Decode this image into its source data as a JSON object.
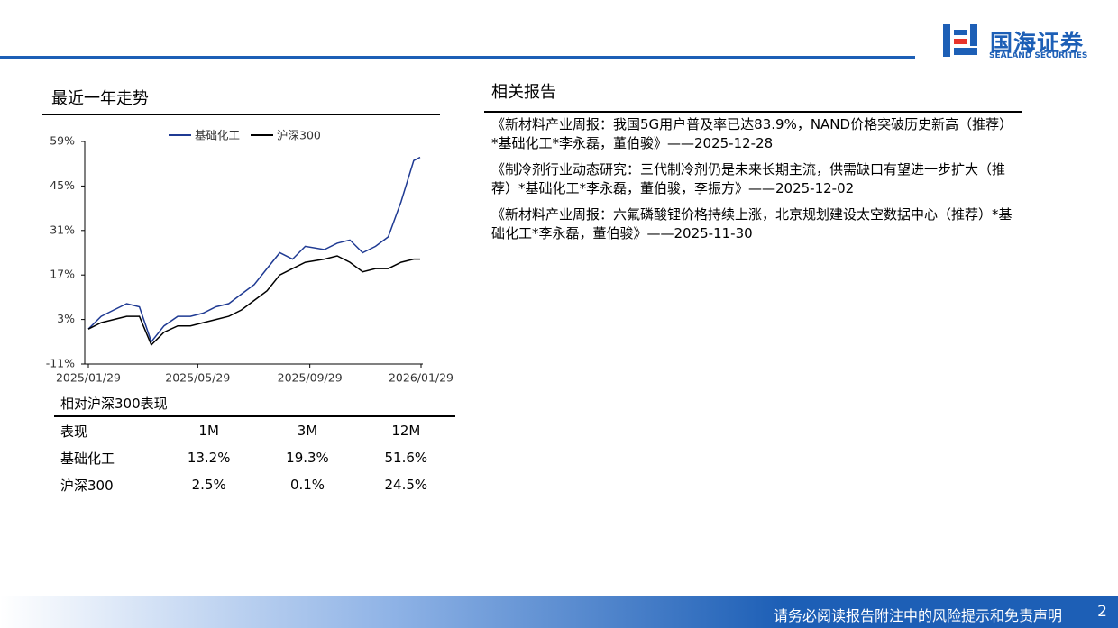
{
  "header": {
    "logo_cn": "国海证券",
    "logo_en": "SEALAND SECURITIES"
  },
  "chart_data": {
    "type": "line",
    "title": "最近一年走势",
    "x": [
      "2025/01/29",
      "2025/02/12",
      "2025/02/26",
      "2025/03/12",
      "2025/03/26",
      "2025/04/08",
      "2025/04/22",
      "2025/05/07",
      "2025/05/21",
      "2025/06/04",
      "2025/06/18",
      "2025/07/02",
      "2025/07/16",
      "2025/07/30",
      "2025/08/13",
      "2025/08/27",
      "2025/09/10",
      "2025/09/24",
      "2025/10/15",
      "2025/10/29",
      "2025/11/12",
      "2025/11/26",
      "2025/12/10",
      "2025/12/24",
      "2026/01/07",
      "2026/01/21",
      "2026/01/28"
    ],
    "series": [
      {
        "name": "基础化工",
        "color": "#1f3a93",
        "values": [
          0,
          4,
          6,
          8,
          7,
          -4,
          1,
          4,
          4,
          5,
          7,
          8,
          11,
          14,
          19,
          24,
          22,
          26,
          25,
          27,
          28,
          24,
          26,
          29,
          40,
          53,
          54
        ]
      },
      {
        "name": "沪深300",
        "color": "#000000",
        "values": [
          0,
          2,
          3,
          4,
          4,
          -5,
          -1,
          1,
          1,
          2,
          3,
          4,
          6,
          9,
          12,
          17,
          19,
          21,
          22,
          23,
          21,
          18,
          19,
          19,
          21,
          22,
          22
        ]
      }
    ],
    "xlim": [
      "2025/01/29",
      "2026/01/29"
    ],
    "xticks": [
      "2025/01/29",
      "2025/05/29",
      "2025/09/29",
      "2026/01/29"
    ],
    "ylim": [
      -11,
      59
    ],
    "yticks": [
      {
        "value": -11,
        "label": "-11%"
      },
      {
        "value": 3,
        "label": "3%"
      },
      {
        "value": 17,
        "label": "17%"
      },
      {
        "value": 31,
        "label": "31%"
      },
      {
        "value": 45,
        "label": "45%"
      },
      {
        "value": 59,
        "label": "59%"
      }
    ]
  },
  "performance": {
    "title": "相对沪深300表现",
    "header": [
      "表现",
      "1M",
      "3M",
      "12M"
    ],
    "rows": [
      [
        "基础化工",
        "13.2%",
        "19.3%",
        "51.6%"
      ],
      [
        "沪深300",
        "2.5%",
        "0.1%",
        "24.5%"
      ]
    ]
  },
  "related": {
    "title": "相关报告",
    "items": [
      "《新材料产业周报：我国5G用户普及率已达83.9%，NAND价格突破历史新高（推荐）*基础化工*李永磊，董伯骏》——2025-12-28",
      "《制冷剂行业动态研究：三代制冷剂仍是未来长期主流，供需缺口有望进一步扩大（推荐）*基础化工*李永磊，董伯骏，李振方》——2025-12-02",
      "《新材料产业周报：六氟磷酸锂价格持续上涨，北京规划建设太空数据中心（推荐）*基础化工*李永磊，董伯骏》——2025-11-30"
    ]
  },
  "footer": {
    "disclaimer": "请务必阅读报告附注中的风险提示和免责声明",
    "page": "2"
  }
}
